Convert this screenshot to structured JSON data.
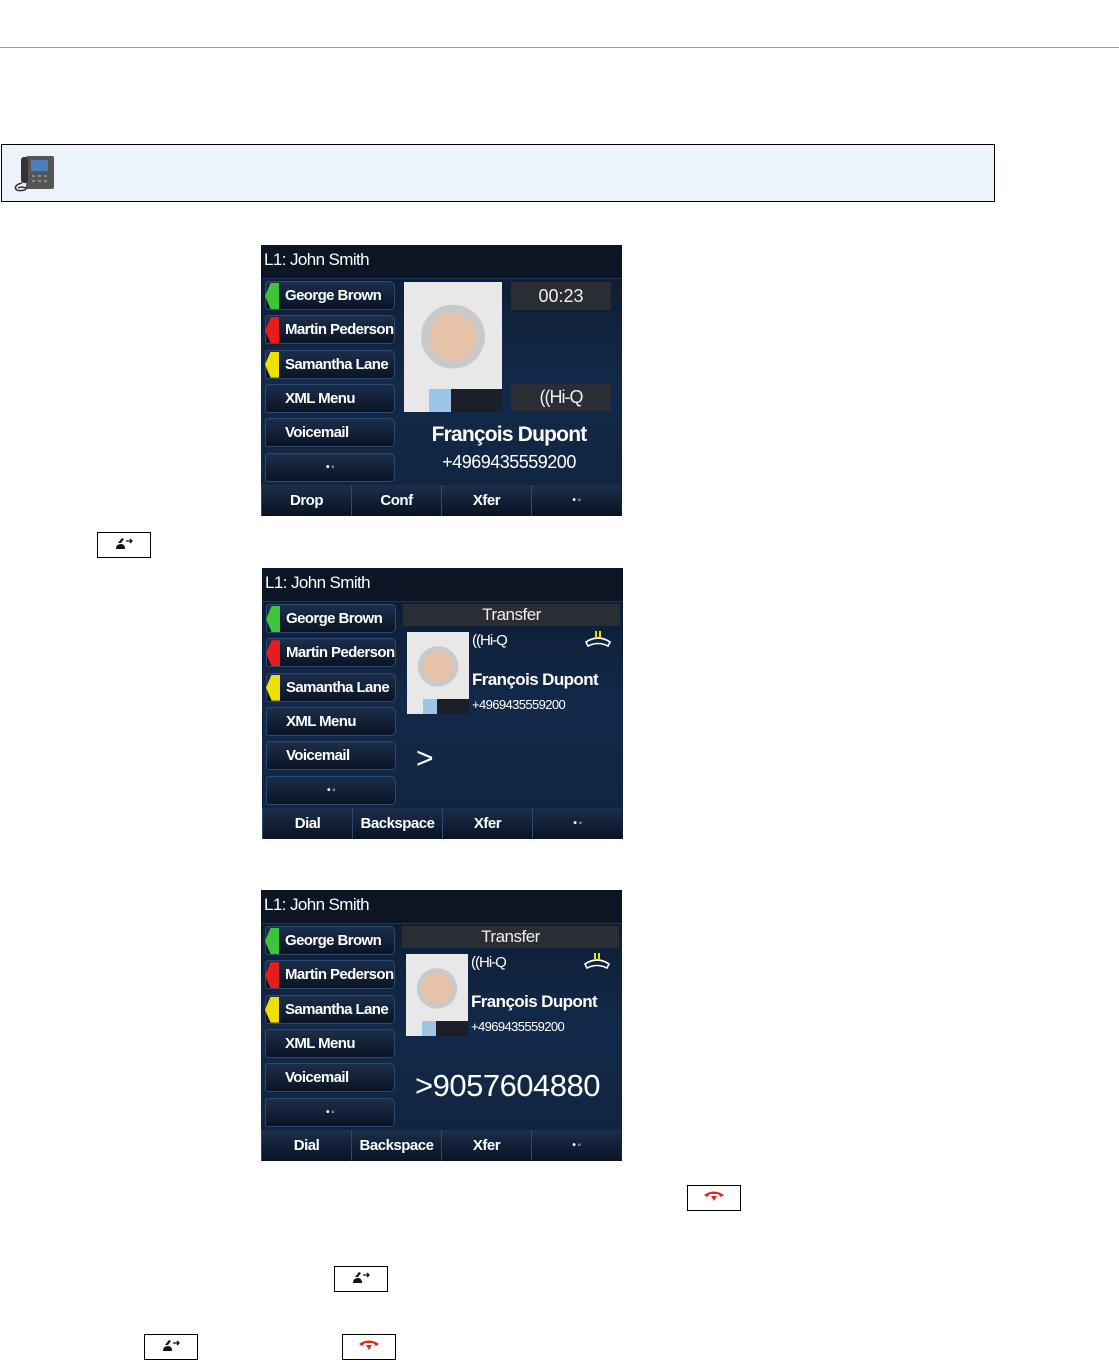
{
  "screens": [
    {
      "line": "L1: John Smith",
      "line_keys": [
        {
          "label": "George Brown",
          "color": "#3cc43c"
        },
        {
          "label": "Martin Pederson",
          "color": "#e81c1c"
        },
        {
          "label": "Samantha Lane",
          "color": "#f0e000"
        },
        {
          "label": "XML Menu"
        },
        {
          "label": "Voicemail"
        },
        {
          "label": "• ◦"
        }
      ],
      "timer": "00:23",
      "hiq": "((Hi-Q",
      "caller_name": "François Dupont",
      "caller_number": "+4969435559200",
      "softkeys": [
        "Drop",
        "Conf",
        "Xfer",
        "• ◦"
      ]
    },
    {
      "line": "L1: John Smith",
      "line_keys": [
        {
          "label": "George Brown",
          "color": "#3cc43c"
        },
        {
          "label": "Martin Pederson",
          "color": "#e81c1c"
        },
        {
          "label": "Samantha Lane",
          "color": "#f0e000"
        },
        {
          "label": "XML Menu"
        },
        {
          "label": "Voicemail"
        },
        {
          "label": "• ◦"
        }
      ],
      "header": "Transfer",
      "hiq": "((Hi-Q",
      "caller_name": "François Dupont",
      "caller_number": "+4969435559200",
      "dial_entry": ">",
      "softkeys": [
        "Dial",
        "Backspace",
        "Xfer",
        "• ◦"
      ]
    },
    {
      "line": "L1: John Smith",
      "line_keys": [
        {
          "label": "George Brown",
          "color": "#3cc43c"
        },
        {
          "label": "Martin Pederson",
          "color": "#e81c1c"
        },
        {
          "label": "Samantha Lane",
          "color": "#f0e000"
        },
        {
          "label": "XML Menu"
        },
        {
          "label": "Voicemail"
        },
        {
          "label": "• ◦"
        }
      ],
      "header": "Transfer",
      "hiq": "((Hi-Q",
      "caller_name": "François Dupont",
      "caller_number": "+4969435559200",
      "dial_entry": ">9057604880",
      "softkeys": [
        "Dial",
        "Backspace",
        "Xfer",
        "• ◦"
      ]
    }
  ],
  "keys": [
    {
      "icon": "transfer-key-icon"
    },
    {
      "icon": "end-call-key-icon"
    },
    {
      "icon": "transfer-key-icon"
    },
    {
      "icon": "transfer-key-icon"
    },
    {
      "icon": "end-call-key-icon"
    }
  ],
  "colors": {
    "note_bg": "#edf3fb",
    "end_call": "#e8231e"
  }
}
